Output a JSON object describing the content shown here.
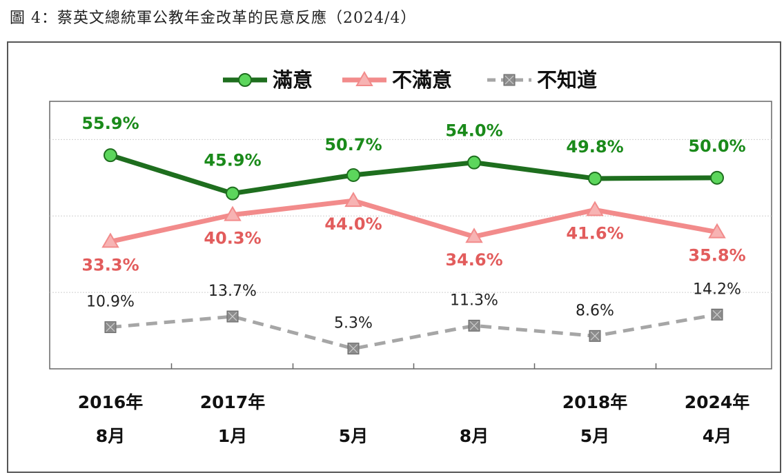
{
  "caption": "圖 4：蔡英文總統軍公教年金改革的民意反應（2024/4）",
  "chart_data": {
    "type": "line",
    "title": "圖 4：蔡英文總統軍公教年金改革的民意反應（2024/4）",
    "categories": [
      [
        "2016年",
        "8月"
      ],
      [
        "2017年",
        "1月"
      ],
      [
        "",
        "5月"
      ],
      [
        "",
        "8月"
      ],
      [
        "2018年",
        "5月"
      ],
      [
        "2024年",
        "4月"
      ]
    ],
    "ylim": [
      0,
      70
    ],
    "grid": true,
    "legend_position": "top-center",
    "series": [
      {
        "name": "滿意",
        "values": [
          55.9,
          45.9,
          50.7,
          54.0,
          49.8,
          50.0
        ],
        "labels": [
          "55.9%",
          "45.9%",
          "50.7%",
          "54.0%",
          "49.8%",
          "50.0%"
        ],
        "color": "#1e6e1e",
        "marker": "circle",
        "marker_color": "#5cd65c",
        "style": "solid"
      },
      {
        "name": "不滿意",
        "values": [
          33.3,
          40.3,
          44.0,
          34.6,
          41.6,
          35.8
        ],
        "labels": [
          "33.3%",
          "40.3%",
          "44.0%",
          "34.6%",
          "41.6%",
          "35.8%"
        ],
        "color": "#f28b8b",
        "marker": "triangle",
        "marker_color": "#f7b3b3",
        "style": "solid"
      },
      {
        "name": "不知道",
        "values": [
          10.9,
          13.7,
          5.3,
          11.3,
          8.6,
          14.2
        ],
        "labels": [
          "10.9%",
          "13.7%",
          "5.3%",
          "11.3%",
          "8.6%",
          "14.2%"
        ],
        "color": "#a6a6a6",
        "marker": "square-x",
        "marker_color": "#8c8c8c",
        "style": "dashed"
      }
    ]
  }
}
